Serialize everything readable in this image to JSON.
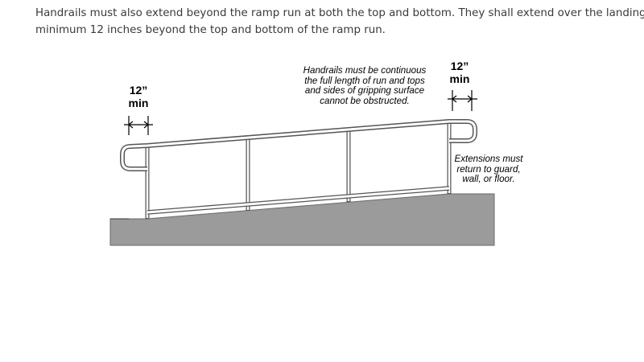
{
  "intro": {
    "lines": [
      "Handrails must also extend beyond the ramp run at both the top and bottom. They shall extend over the landing a",
      "minimum 12 inches beyond the top and bottom of the ramp run."
    ]
  },
  "diagram": {
    "left_dimension": {
      "value": "12”",
      "unit": "min"
    },
    "right_dimension": {
      "value": "12”",
      "unit": "min"
    },
    "continuity_note": [
      "Handrails must be continuous",
      "the full length of run and tops",
      "and sides of gripping surface",
      "cannot be obstructed."
    ],
    "extensions_note": [
      "Extensions must",
      "return to guard,",
      "wall, or floor."
    ],
    "colors": {
      "ramp_fill": "#9b9b9b",
      "rail_outline": "#555555",
      "rail_fill": "#ffffff"
    }
  }
}
